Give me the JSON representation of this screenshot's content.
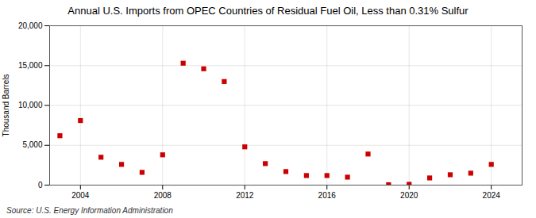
{
  "chart_data": {
    "type": "scatter",
    "title": "Annual U.S. Imports from OPEC Countries of Residual Fuel Oil, Less than 0.31% Sulfur",
    "ylabel": "Thousand Barrels",
    "source": "Source: U.S. Energy Information Administration",
    "x": [
      2003,
      2004,
      2005,
      2006,
      2007,
      2008,
      2009,
      2010,
      2011,
      2012,
      2013,
      2014,
      2015,
      2016,
      2017,
      2018,
      2019,
      2020,
      2021,
      2022,
      2023,
      2024
    ],
    "values": [
      6200,
      8100,
      3500,
      2600,
      1600,
      3800,
      15300,
      14600,
      13000,
      4800,
      2700,
      1700,
      1200,
      1200,
      1000,
      3900,
      50,
      100,
      900,
      1300,
      1500,
      2600
    ],
    "color": "#cc0000",
    "marker": "square",
    "xlim": [
      2002.5,
      2025.5
    ],
    "xticks": [
      2004,
      2008,
      2012,
      2016,
      2020,
      2024
    ],
    "ylim": [
      0,
      20000
    ],
    "yticks": [
      0,
      {
        "value": 5000,
        "label": "5,000"
      },
      {
        "value": 10000,
        "label": "10,000"
      },
      {
        "value": 15000,
        "label": "15,000"
      },
      {
        "value": 20000,
        "label": "20,000"
      }
    ],
    "grid": true
  }
}
